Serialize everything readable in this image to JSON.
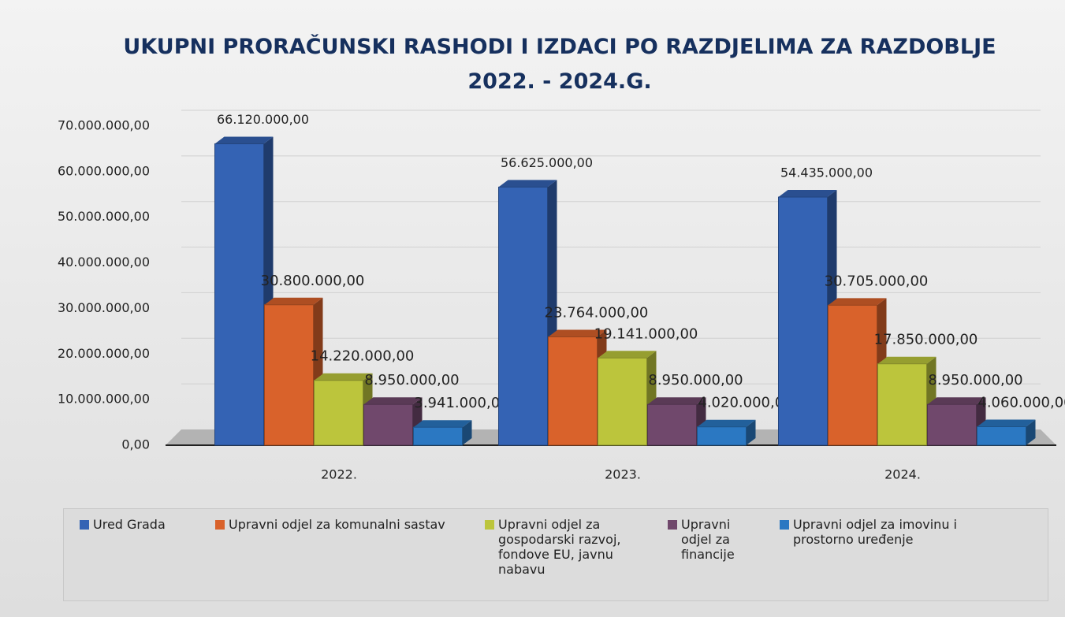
{
  "chart_data": {
    "type": "bar3d",
    "title": "UKUPNI PRORAČUNSKI RASHODI I IZDACI PO RAZDJELIMA ZA RAZDOBLJE 2022. - 2024.G.",
    "categories": [
      "2022.",
      "2023.",
      "2024."
    ],
    "series": [
      {
        "name": "Ured Grada",
        "color": "#3463b4",
        "values": [
          66120000,
          56625000,
          54435000
        ],
        "value_labels": [
          "66.120.000,00",
          "56.625.000,00",
          "54.435.000,00"
        ]
      },
      {
        "name": "Upravni odjel za komunalni sastav",
        "color": "#d9622b",
        "values": [
          30800000,
          23764000,
          30705000
        ],
        "value_labels": [
          "30.800.000,00",
          "23.764.000,00",
          "30.705.000,00"
        ]
      },
      {
        "name": "Upravni odjel za gospodarski razvoj, fondove EU, javnu nabavu",
        "color": "#bcc53c",
        "values": [
          14220000,
          19141000,
          17850000
        ],
        "value_labels": [
          "14.220.000,00",
          "19.141.000,00",
          "17.850.000,00"
        ]
      },
      {
        "name": "Upravni odjel za financije",
        "color": "#70486c",
        "values": [
          8950000,
          8950000,
          8950000
        ],
        "value_labels": [
          "8.950.000,00",
          "8.950.000,00",
          "8.950.000,00"
        ]
      },
      {
        "name": "Upravni odjel za imovinu i prostorno uređenje",
        "color": "#2b78c2",
        "values": [
          3941000,
          4020000,
          4060000
        ],
        "value_labels": [
          "3.941.000,00",
          "4.020.000,00",
          "4.060.000,00"
        ]
      }
    ],
    "ylim": [
      0,
      70000000
    ],
    "yticks": [
      {
        "value": 0,
        "label": "0,00"
      },
      {
        "value": 10000000,
        "label": "10.000.000,00"
      },
      {
        "value": 20000000,
        "label": "20.000.000,00"
      },
      {
        "value": 30000000,
        "label": "30.000.000,00"
      },
      {
        "value": 40000000,
        "label": "40.000.000,00"
      },
      {
        "value": 50000000,
        "label": "50.000.000,00"
      },
      {
        "value": 60000000,
        "label": "60.000.000,00"
      },
      {
        "value": 70000000,
        "label": "70.000.000,00"
      }
    ],
    "grid": true,
    "legend": "bottom"
  }
}
